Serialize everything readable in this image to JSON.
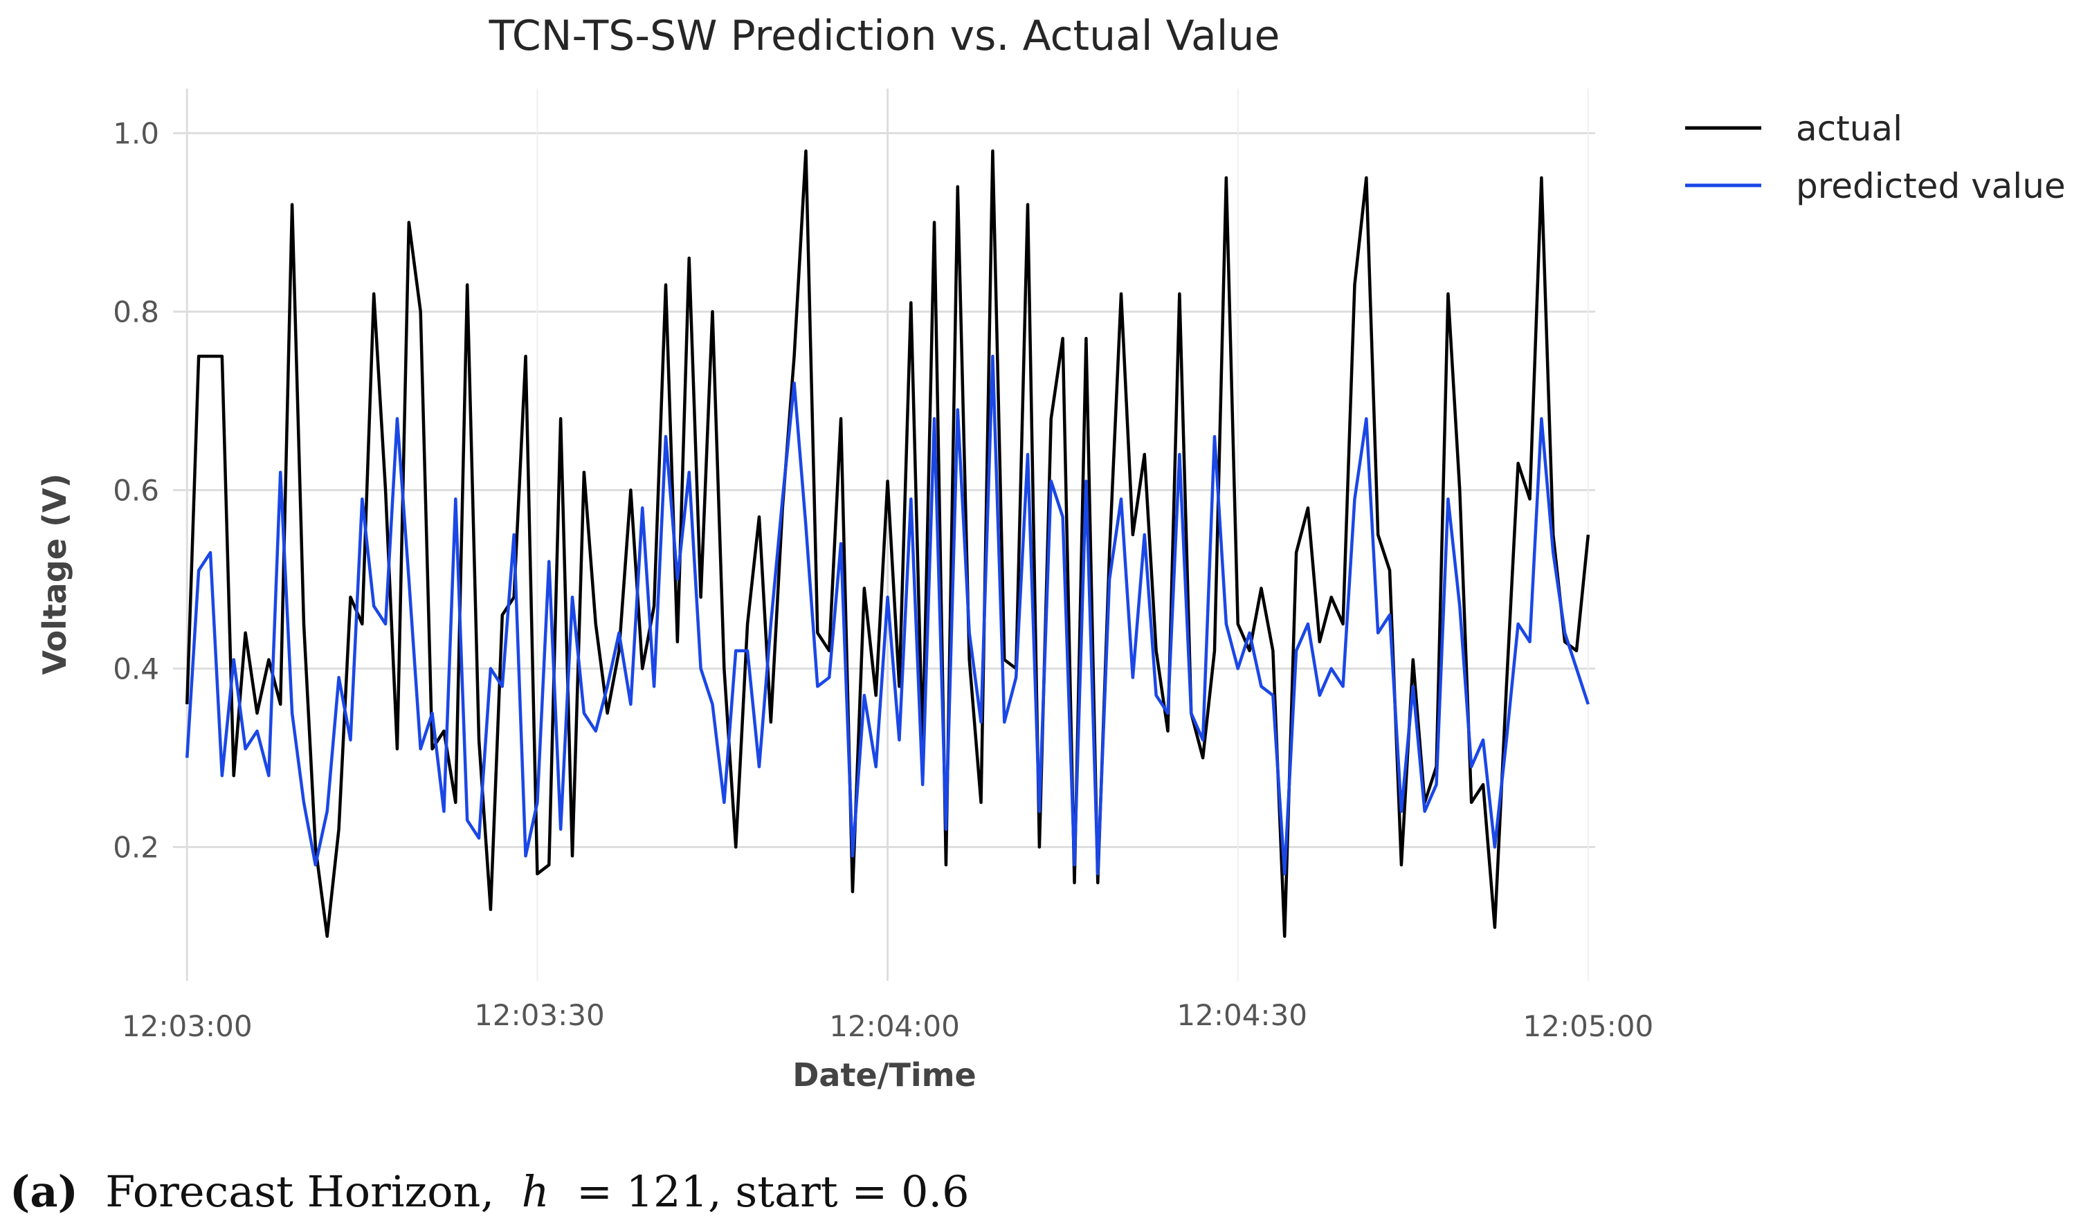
{
  "chart_data": {
    "type": "line",
    "title": "TCN-TS-SW Prediction vs. Actual Value",
    "xlabel": "Date/Time",
    "ylabel": "Voltage (V)",
    "x_tick_labels": [
      "12:03:00",
      "12:03:30",
      "12:04:00",
      "12:04:30",
      "12:05:00"
    ],
    "x_tick_seconds": [
      0,
      30,
      60,
      90,
      120
    ],
    "y_ticks": [
      0.2,
      0.4,
      0.6,
      0.8,
      1.0
    ],
    "y_tick_labels": [
      "0.2",
      "0.4",
      "0.6",
      "0.8",
      "1.0"
    ],
    "xlim_seconds": [
      -1.2,
      120.6
    ],
    "ylim": [
      0.05,
      1.05
    ],
    "grid": true,
    "legend_position": "outside-top-right",
    "series": [
      {
        "name": "actual",
        "color": "#000000",
        "values": [
          0.36,
          0.75,
          0.75,
          0.75,
          0.28,
          0.44,
          0.35,
          0.41,
          0.36,
          0.92,
          0.45,
          0.2,
          0.1,
          0.22,
          0.48,
          0.45,
          0.82,
          0.6,
          0.31,
          0.9,
          0.8,
          0.31,
          0.33,
          0.25,
          0.83,
          0.32,
          0.13,
          0.46,
          0.48,
          0.75,
          0.17,
          0.18,
          0.68,
          0.19,
          0.62,
          0.45,
          0.35,
          0.42,
          0.6,
          0.4,
          0.47,
          0.83,
          0.43,
          0.86,
          0.48,
          0.8,
          0.4,
          0.2,
          0.45,
          0.57,
          0.34,
          0.58,
          0.75,
          0.98,
          0.44,
          0.42,
          0.68,
          0.15,
          0.49,
          0.37,
          0.61,
          0.38,
          0.81,
          0.31,
          0.9,
          0.18,
          0.94,
          0.41,
          0.25,
          0.98,
          0.41,
          0.4,
          0.92,
          0.2,
          0.68,
          0.77,
          0.16,
          0.77,
          0.16,
          0.53,
          0.82,
          0.55,
          0.64,
          0.42,
          0.33,
          0.82,
          0.35,
          0.3,
          0.42,
          0.95,
          0.45,
          0.42,
          0.49,
          0.42,
          0.1,
          0.53,
          0.58,
          0.43,
          0.48,
          0.45,
          0.83,
          0.95,
          0.55,
          0.51,
          0.18,
          0.41,
          0.25,
          0.29,
          0.82,
          0.6,
          0.25,
          0.27,
          0.11,
          0.38,
          0.63,
          0.59,
          0.95,
          0.55,
          0.43,
          0.42,
          0.55
        ]
      },
      {
        "name": "predicted value",
        "color": "#1a47e6",
        "values": [
          0.3,
          0.51,
          0.53,
          0.28,
          0.41,
          0.31,
          0.33,
          0.28,
          0.62,
          0.35,
          0.25,
          0.18,
          0.24,
          0.39,
          0.32,
          0.59,
          0.47,
          0.45,
          0.68,
          0.5,
          0.31,
          0.35,
          0.24,
          0.59,
          0.23,
          0.21,
          0.4,
          0.38,
          0.55,
          0.19,
          0.25,
          0.52,
          0.22,
          0.48,
          0.35,
          0.33,
          0.38,
          0.44,
          0.36,
          0.58,
          0.38,
          0.66,
          0.5,
          0.62,
          0.4,
          0.36,
          0.25,
          0.42,
          0.42,
          0.29,
          0.45,
          0.59,
          0.72,
          0.56,
          0.38,
          0.39,
          0.54,
          0.19,
          0.37,
          0.29,
          0.48,
          0.32,
          0.59,
          0.27,
          0.68,
          0.22,
          0.69,
          0.44,
          0.34,
          0.75,
          0.34,
          0.39,
          0.64,
          0.24,
          0.61,
          0.57,
          0.18,
          0.61,
          0.17,
          0.5,
          0.59,
          0.39,
          0.55,
          0.37,
          0.35,
          0.64,
          0.35,
          0.32,
          0.66,
          0.45,
          0.4,
          0.44,
          0.38,
          0.37,
          0.17,
          0.42,
          0.45,
          0.37,
          0.4,
          0.38,
          0.59,
          0.68,
          0.44,
          0.46,
          0.24,
          0.38,
          0.24,
          0.27,
          0.59,
          0.47,
          0.29,
          0.32,
          0.2,
          0.32,
          0.45,
          0.43,
          0.68,
          0.53,
          0.44,
          0.4,
          0.36
        ]
      }
    ]
  },
  "caption": {
    "label": "(a)",
    "text_before": " Forecast Horizon, ",
    "variable": "h",
    "text_after": " = 121, start = 0.6"
  }
}
